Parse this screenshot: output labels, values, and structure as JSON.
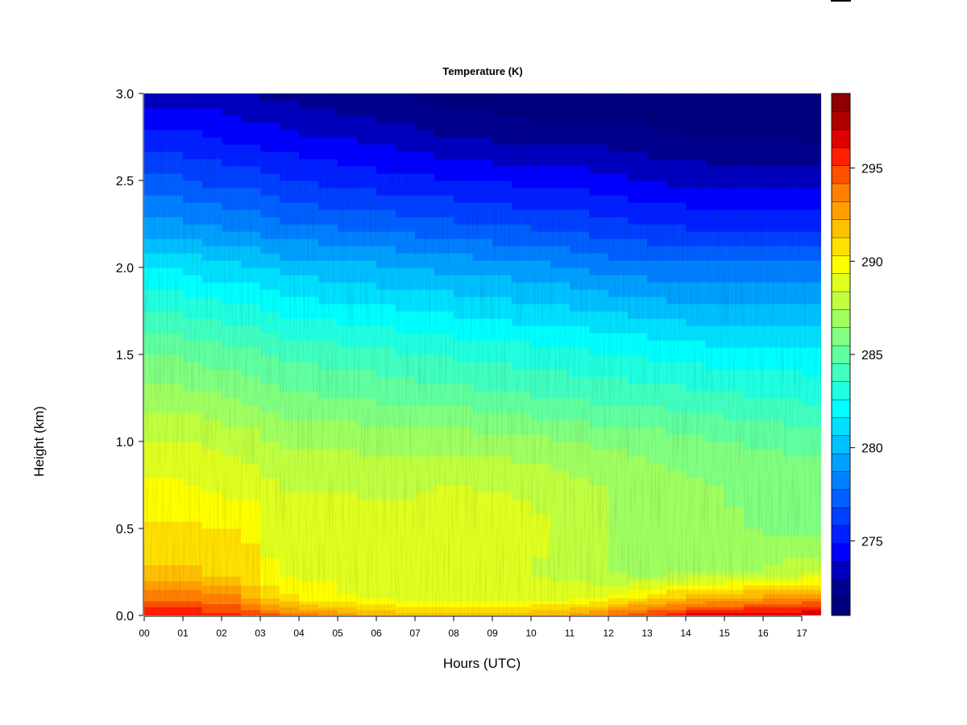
{
  "chart_data": {
    "type": "heatmap",
    "title": "Temperature (K)",
    "xlabel": "Hours (UTC)",
    "ylabel": "Height (km)",
    "x_ticks": [
      "00",
      "01",
      "02",
      "03",
      "04",
      "05",
      "06",
      "07",
      "08",
      "09",
      "10",
      "11",
      "12",
      "13",
      "14",
      "15",
      "16",
      "17"
    ],
    "y_ticks": [
      "0.0",
      "0.5",
      "1.0",
      "1.5",
      "2.0",
      "2.5",
      "3.0"
    ],
    "xlim": [
      0,
      17.5
    ],
    "ylim": [
      0,
      3.0
    ],
    "colorbar": {
      "label": "",
      "ticks": [
        "275",
        "280",
        "285",
        "290",
        "295"
      ],
      "tick_values": [
        275,
        280,
        285,
        290,
        295
      ],
      "range": [
        271,
        299
      ],
      "levels": 28,
      "colors": [
        "#00007f",
        "#00008f",
        "#0000bf",
        "#0000ff",
        "#0020ff",
        "#0040ff",
        "#0060ff",
        "#0080ff",
        "#00a0ff",
        "#00c0ff",
        "#00e0ff",
        "#00ffff",
        "#20ffe0",
        "#40ffc0",
        "#60ff9f",
        "#80ff80",
        "#a0ff60",
        "#c0ff40",
        "#e0ff20",
        "#ffff00",
        "#ffe000",
        "#ffc000",
        "#ffa000",
        "#ff8000",
        "#ff5000",
        "#ff2000",
        "#e00000",
        "#b00000",
        "#8f0000"
      ]
    },
    "time_hours": [
      0,
      0.5,
      1,
      1.5,
      2,
      2.5,
      3,
      3.5,
      4,
      4.5,
      5,
      5.5,
      6,
      6.5,
      7,
      7.5,
      8,
      8.5,
      9,
      9.5,
      10,
      10.5,
      11,
      11.5,
      12,
      12.5,
      13,
      13.5,
      14,
      14.5,
      15,
      15.5,
      16,
      16.5,
      17,
      17.5
    ],
    "heights_km": [
      0.0,
      0.1,
      0.25,
      0.5,
      0.75,
      1.0,
      1.25,
      1.5,
      1.75,
      2.0,
      2.25,
      2.5,
      2.75,
      3.0
    ],
    "temperature_K": [
      [
        296,
        294,
        291.5,
        290.5,
        289.5,
        288.5,
        287,
        285.5,
        283.5,
        281.5,
        279,
        277,
        275,
        273.5
      ],
      [
        296,
        294,
        291.5,
        290.5,
        289.5,
        288.5,
        287,
        285.5,
        283.5,
        281.5,
        279,
        277,
        275,
        273.5
      ],
      [
        296,
        294,
        291.5,
        290.5,
        289.3,
        288.3,
        286.8,
        285.3,
        283.3,
        281.3,
        278.8,
        276.8,
        275,
        273.5
      ],
      [
        295.5,
        293.5,
        291,
        290.3,
        289.2,
        288.2,
        286.6,
        285.1,
        283.1,
        281.1,
        278.6,
        276.6,
        274.8,
        273.3
      ],
      [
        295.5,
        293.5,
        291,
        290.3,
        289,
        288,
        286.5,
        285,
        283,
        281,
        278.5,
        276.5,
        274.6,
        273.2
      ],
      [
        295,
        292,
        290.5,
        290.2,
        288.8,
        287.8,
        286.3,
        284.8,
        282.8,
        280.8,
        278.3,
        276.3,
        274.5,
        273
      ],
      [
        294.5,
        291,
        289.5,
        289,
        288.5,
        287.5,
        286,
        284.5,
        282.5,
        280.5,
        278,
        276,
        274.3,
        272.8
      ],
      [
        294,
        290.5,
        289,
        288.8,
        288.3,
        287.3,
        285.8,
        284.3,
        282.3,
        280.3,
        277.8,
        275.8,
        274.2,
        272.7
      ],
      [
        293.5,
        290,
        289,
        289,
        288.3,
        287.2,
        285.7,
        284.2,
        282.2,
        280.2,
        277.7,
        275.7,
        274,
        272.5
      ],
      [
        293,
        290,
        289,
        289,
        288.3,
        287.2,
        285.6,
        284.1,
        282.1,
        280.1,
        277.6,
        275.6,
        274,
        272.5
      ],
      [
        293,
        289.5,
        288.8,
        289,
        288.3,
        287.2,
        285.5,
        284,
        282,
        280,
        277.5,
        275.5,
        273.8,
        272.3
      ],
      [
        292.5,
        289.3,
        288.7,
        288.8,
        288.2,
        287.1,
        285.4,
        283.9,
        281.9,
        279.9,
        277.4,
        275.4,
        273.7,
        272.2
      ],
      [
        292.5,
        289.2,
        288.5,
        288.8,
        288.2,
        287,
        285.3,
        283.8,
        281.8,
        279.8,
        277.3,
        275.3,
        273.5,
        272
      ],
      [
        292,
        289,
        288.5,
        288.8,
        288.2,
        287,
        285.2,
        283.7,
        281.7,
        279.7,
        277.2,
        275.2,
        273.4,
        271.9
      ],
      [
        292,
        289,
        288.5,
        289,
        288.3,
        287,
        285.1,
        283.6,
        281.6,
        279.6,
        277.1,
        275.1,
        273.2,
        271.8
      ],
      [
        292,
        289,
        288.5,
        289.3,
        288.5,
        287,
        285,
        283.5,
        281.5,
        279.5,
        277,
        275,
        273,
        271.6
      ],
      [
        292,
        289,
        288.5,
        289.2,
        288.4,
        287,
        285,
        283.4,
        281.4,
        279.4,
        276.9,
        274.9,
        272.8,
        271.5
      ],
      [
        292,
        289,
        288.5,
        289,
        288.3,
        286.9,
        284.9,
        283.3,
        281.3,
        279.3,
        276.8,
        274.8,
        272.8,
        271.5
      ],
      [
        292,
        289,
        288.5,
        289,
        288.2,
        286.9,
        284.8,
        283.2,
        281.2,
        279.2,
        276.7,
        274.7,
        272.7,
        271.4
      ],
      [
        292,
        289,
        288.4,
        288.8,
        288.1,
        286.8,
        284.7,
        283.1,
        281.1,
        279.1,
        276.6,
        274.6,
        272.6,
        271.3
      ],
      [
        292.2,
        289,
        288.3,
        288.6,
        288,
        286.7,
        284.6,
        283,
        281,
        279,
        276.5,
        274.5,
        272.5,
        271.2
      ],
      [
        292.5,
        289,
        288.1,
        288.3,
        287.8,
        286.6,
        284.5,
        282.9,
        280.9,
        278.9,
        276.5,
        274.5,
        272.5,
        271.2
      ],
      [
        293,
        289.2,
        287.8,
        288,
        287.6,
        286.5,
        284.4,
        282.8,
        280.8,
        278.7,
        276.4,
        274.4,
        272.5,
        271.2
      ],
      [
        293.5,
        289.5,
        287.5,
        287.6,
        287.4,
        286.3,
        284.3,
        282.7,
        280.6,
        278.5,
        276.2,
        274.3,
        272.5,
        271.2
      ],
      [
        294.5,
        290,
        287.2,
        287.3,
        287.2,
        286.2,
        284.3,
        282.6,
        280.5,
        278.3,
        276,
        274.1,
        272.4,
        271.1
      ],
      [
        295,
        290.5,
        287,
        287,
        287,
        286.1,
        284.2,
        282.5,
        280.4,
        278.2,
        275.9,
        274,
        272.3,
        271
      ],
      [
        295.5,
        291,
        287,
        286.8,
        286.8,
        286,
        284.1,
        282.4,
        280.3,
        278.1,
        275.8,
        273.8,
        272.2,
        271
      ],
      [
        296,
        291.5,
        287.1,
        286.7,
        286.7,
        285.8,
        284,
        282.3,
        280.2,
        278,
        275.7,
        273.7,
        272.1,
        271
      ],
      [
        296.5,
        292,
        287.2,
        286.6,
        286.6,
        285.7,
        283.9,
        282.2,
        280.1,
        278,
        275.6,
        273.6,
        272,
        271
      ],
      [
        296.5,
        292.2,
        287.3,
        286.5,
        286.5,
        285.6,
        283.8,
        282.1,
        280,
        278,
        275.5,
        273.5,
        272,
        271
      ],
      [
        296.5,
        292.3,
        287.4,
        286.5,
        286.4,
        285.5,
        283.7,
        282,
        280,
        278,
        275.5,
        273.5,
        272,
        271
      ],
      [
        297,
        292.6,
        287.5,
        286.4,
        286.3,
        285.4,
        283.6,
        282,
        280,
        278,
        275.5,
        273.5,
        272,
        271
      ],
      [
        297,
        293,
        287.6,
        286.3,
        286.2,
        285.3,
        283.5,
        282,
        280,
        278,
        275.5,
        273.5,
        272,
        271
      ],
      [
        297,
        293.2,
        287.8,
        286.3,
        286.1,
        285.2,
        283.5,
        282,
        280,
        278,
        275.5,
        273.5,
        271.9,
        271
      ],
      [
        297,
        293.5,
        288,
        286.2,
        286,
        285.2,
        283.4,
        282,
        280,
        278,
        275.5,
        273.5,
        271.8,
        271
      ],
      [
        296.5,
        293.3,
        288.2,
        286.2,
        286,
        285.2,
        283.4,
        282,
        280,
        278,
        275.5,
        273.5,
        271.8,
        271
      ]
    ]
  }
}
